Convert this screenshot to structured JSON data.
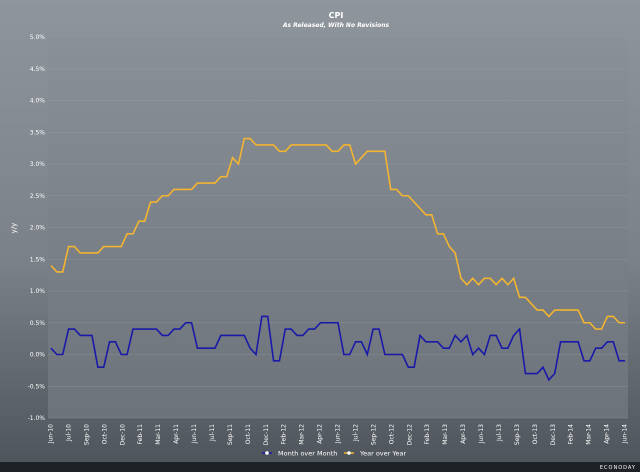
{
  "chart_data": {
    "type": "line",
    "title": "CPI",
    "subtitle": "As Released, With No Revisions",
    "xlabel": "",
    "ylabel": "y/y",
    "ylim": [
      -1.0,
      5.0
    ],
    "yticks": [
      -1.0,
      -0.5,
      0.0,
      0.5,
      1.0,
      1.5,
      2.0,
      2.5,
      3.0,
      3.5,
      4.0,
      4.5,
      5.0
    ],
    "ytick_labels": [
      "-1.0%",
      "-0.5%",
      "0.0%",
      "0.5%",
      "1.0%",
      "1.5%",
      "2.0%",
      "2.5%",
      "3.0%",
      "3.5%",
      "4.0%",
      "4.5%",
      "5.0%"
    ],
    "x_tick_labels": [
      "Jun-10",
      "Jul-10",
      "Sep-10",
      "Oct-10",
      "Dec-10",
      "Feb-11",
      "Mar-11",
      "Apr-11",
      "Jun-11",
      "Jul-11",
      "Sep-11",
      "Oct-11",
      "Dec-11",
      "Feb-12",
      "Mar-12",
      "Apr-12",
      "Jun-12",
      "Jul-12",
      "Sep-12",
      "Oct-12",
      "Dec-12",
      "Feb-13",
      "Mar-13",
      "Apr-13",
      "Jun-13",
      "Jul-13",
      "Sep-13",
      "Oct-13",
      "Dec-13",
      "Feb-14",
      "Mar-14",
      "Apr-14",
      "Jun-14"
    ],
    "grid": true,
    "legend_position": "bottom",
    "series": [
      {
        "name": "Month over Month",
        "color": "#1a1aa8",
        "values": [
          0.1,
          0.0,
          0.0,
          0.4,
          0.4,
          0.3,
          0.3,
          0.3,
          -0.2,
          -0.2,
          0.2,
          0.2,
          0.0,
          0.0,
          0.4,
          0.4,
          0.4,
          0.4,
          0.4,
          0.3,
          0.3,
          0.4,
          0.4,
          0.5,
          0.5,
          0.1,
          0.1,
          0.1,
          0.1,
          0.3,
          0.3,
          0.3,
          0.3,
          0.3,
          0.1,
          0.0,
          0.6,
          0.6,
          -0.1,
          -0.1,
          0.4,
          0.4,
          0.3,
          0.3,
          0.4,
          0.4,
          0.5,
          0.5,
          0.5,
          0.5,
          0.0,
          0.0,
          0.2,
          0.2,
          0.0,
          0.4,
          0.4,
          0.0,
          0.0,
          0.0,
          0.0,
          -0.2,
          -0.2,
          0.3,
          0.2,
          0.2,
          0.2,
          0.1,
          0.1,
          0.3,
          0.2,
          0.3,
          0.0,
          0.1,
          0.0,
          0.3,
          0.3,
          0.1,
          0.1,
          0.3,
          0.4,
          -0.3,
          -0.3,
          -0.3,
          -0.2,
          -0.4,
          -0.3,
          0.2,
          0.2,
          0.2,
          0.2,
          -0.1,
          -0.1,
          0.1,
          0.1,
          0.2,
          0.2,
          -0.1,
          -0.1
        ]
      },
      {
        "name": "Year over Year",
        "color": "#f2b431",
        "values": [
          1.4,
          1.3,
          1.3,
          1.7,
          1.7,
          1.6,
          1.6,
          1.6,
          1.6,
          1.7,
          1.7,
          1.7,
          1.7,
          1.9,
          1.9,
          2.1,
          2.1,
          2.4,
          2.4,
          2.5,
          2.5,
          2.6,
          2.6,
          2.6,
          2.6,
          2.7,
          2.7,
          2.7,
          2.7,
          2.8,
          2.8,
          3.1,
          3.0,
          3.4,
          3.4,
          3.3,
          3.3,
          3.3,
          3.3,
          3.2,
          3.2,
          3.3,
          3.3,
          3.3,
          3.3,
          3.3,
          3.3,
          3.3,
          3.2,
          3.2,
          3.3,
          3.3,
          3.0,
          3.1,
          3.2,
          3.2,
          3.2,
          3.2,
          2.6,
          2.6,
          2.5,
          2.5,
          2.4,
          2.3,
          2.2,
          2.2,
          1.9,
          1.9,
          1.7,
          1.6,
          1.2,
          1.1,
          1.2,
          1.1,
          1.2,
          1.2,
          1.1,
          1.2,
          1.1,
          1.2,
          0.9,
          0.9,
          0.8,
          0.7,
          0.7,
          0.6,
          0.7,
          0.7,
          0.7,
          0.7,
          0.7,
          0.5,
          0.5,
          0.4,
          0.4,
          0.6,
          0.6,
          0.5,
          0.5
        ]
      }
    ],
    "brand": "ECONODAY"
  }
}
